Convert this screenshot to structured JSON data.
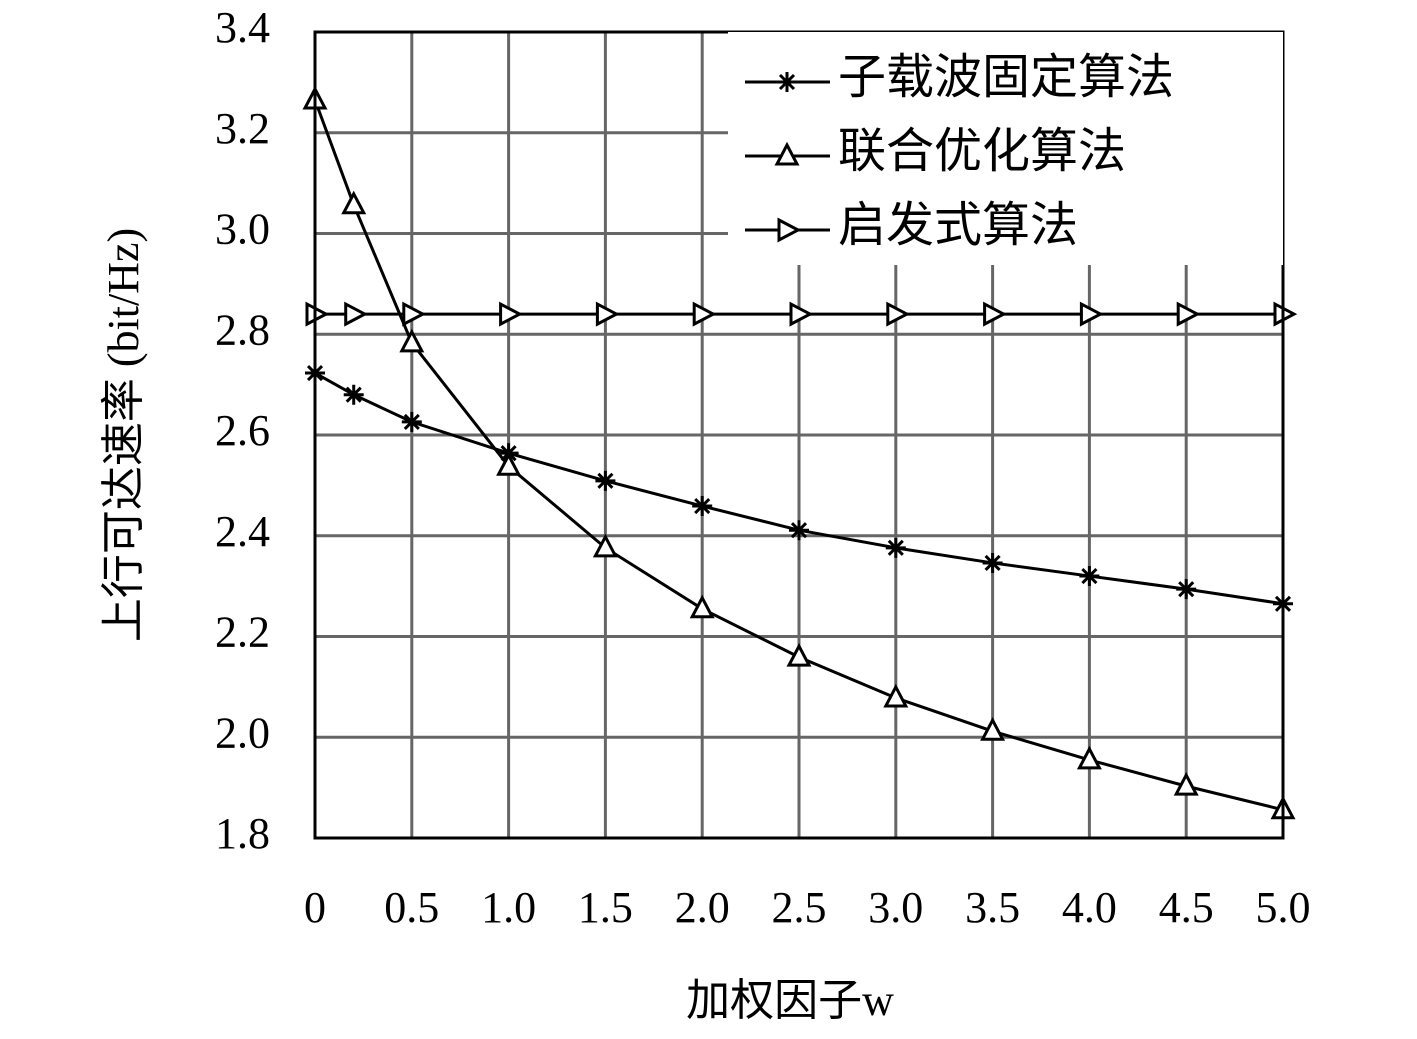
{
  "chart_data": {
    "type": "line",
    "xlabel": "加权因子w",
    "ylabel": "上行可达速率 (bit/Hz)",
    "x": [
      0,
      0.2,
      0.5,
      1.0,
      1.5,
      2.0,
      2.5,
      3.0,
      3.5,
      4.0,
      4.5,
      5.0
    ],
    "series": [
      {
        "name": "子载波固定算法",
        "color": "#000000",
        "marker": "asterisk",
        "values": [
          2.723,
          2.68,
          2.626,
          2.564,
          2.509,
          2.459,
          2.411,
          2.376,
          2.346,
          2.32,
          2.294,
          2.265
        ]
      },
      {
        "name": "联合优化算法",
        "color": "#000000",
        "marker": "triangle-up",
        "values": [
          3.265,
          3.057,
          2.783,
          2.538,
          2.376,
          2.255,
          2.159,
          2.078,
          2.012,
          1.955,
          1.903,
          1.856
        ]
      },
      {
        "name": "启发式算法",
        "color": "#000000",
        "marker": "triangle-right",
        "values": [
          2.84,
          2.84,
          2.84,
          2.84,
          2.84,
          2.84,
          2.84,
          2.84,
          2.84,
          2.84,
          2.84,
          2.84
        ]
      }
    ],
    "xlim": [
      0,
      5
    ],
    "xticks": [
      0,
      0.5,
      {
        "value": 1,
        "label": "1.0"
      },
      1.5,
      {
        "value": 2,
        "label": "2.0"
      },
      2.5,
      {
        "value": 3,
        "label": "3.0"
      },
      3.5,
      {
        "value": 4,
        "label": "4.0"
      },
      4.5,
      {
        "value": 5,
        "label": "5.0"
      }
    ],
    "ylim": [
      1.8,
      3.4
    ],
    "yticks": [
      1.8,
      {
        "value": 2,
        "label": "2.0"
      },
      2.2,
      2.4,
      2.6,
      2.8,
      {
        "value": 3,
        "label": "3.0"
      },
      3.2,
      3.4
    ],
    "grid": true,
    "legend": "upper right"
  }
}
